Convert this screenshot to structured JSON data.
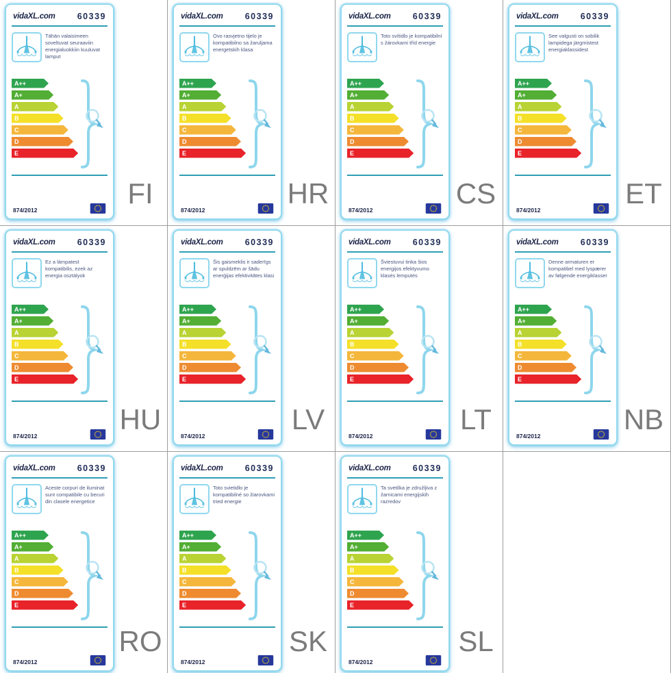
{
  "product": {
    "brand": "vidaXL.com",
    "model": "60339",
    "regulation": "874/2012"
  },
  "energy_scale": {
    "classes": [
      {
        "label": "A++",
        "color": "#2fa44f"
      },
      {
        "label": "A+",
        "color": "#52ae34"
      },
      {
        "label": "A",
        "color": "#b8d333"
      },
      {
        "label": "B",
        "color": "#f4e028"
      },
      {
        "label": "C",
        "color": "#f4b73c"
      },
      {
        "label": "D",
        "color": "#ee8b31"
      },
      {
        "label": "E",
        "color": "#e8232a"
      }
    ]
  },
  "labels": [
    {
      "lang": "FI",
      "description": "Tähän valaisimeen soveltuvat seuraaviin energialuokkiin kuuluvat lamput"
    },
    {
      "lang": "HR",
      "description": "Ovo rasvjetno tijelo je kompatibilno sa žaruljama energetskih klasa"
    },
    {
      "lang": "CS",
      "description": "Toto svítidlo je kompatibilní s žárovkami tříd energie"
    },
    {
      "lang": "ET",
      "description": "See valgusti on sobilik lampidega järgmistest energiaklassidest"
    },
    {
      "lang": "HU",
      "description": "Ez a lámpatest kompatibilis, ezek az energia osztályok"
    },
    {
      "lang": "LV",
      "description": "Šis gaismeklis ir saderīgs ar spuldzēm ar šādu enerģijas efektivitātes klasi"
    },
    {
      "lang": "LT",
      "description": "Šviestuvui tinka šios energijos efektyvumo klasės lemputės"
    },
    {
      "lang": "NB",
      "description": "Denne armaturen er kompatibel med lyspærer av følgende energiklasser"
    },
    {
      "lang": "RO",
      "description": "Aceste corpuri de iluminat sunt compatibile cu becuri din clasele energetice"
    },
    {
      "lang": "SK",
      "description": "Toto svietidlo je kompatibilné so žiarovkami tried energie"
    },
    {
      "lang": "SL",
      "description": "Ta svetilka je združljiva z žarnicami energijskih razredov"
    }
  ]
}
